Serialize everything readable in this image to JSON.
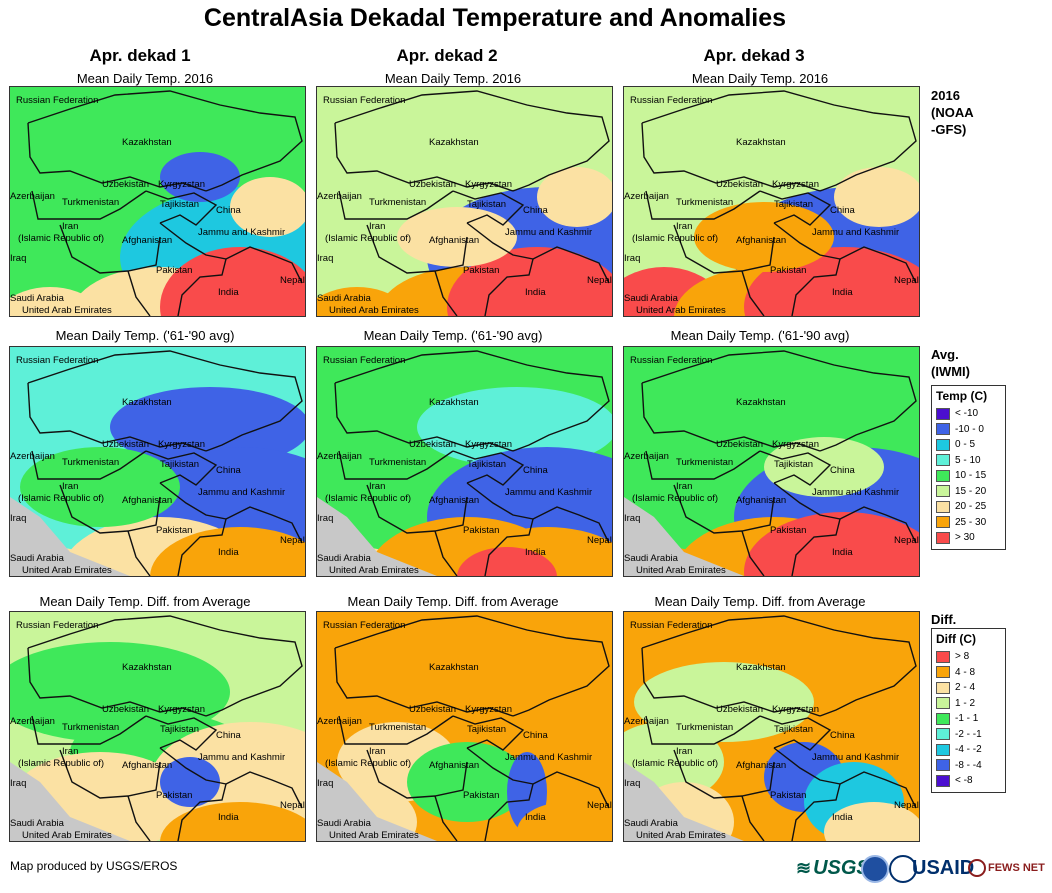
{
  "title": "CentralAsia Dekadal Temperature and Anomalies",
  "columns": [
    "Apr. dekad 1",
    "Apr. dekad 2",
    "Apr. dekad 3"
  ],
  "rows": [
    {
      "panel_title": "Mean Daily Temp. 2016",
      "side_label": [
        "2016",
        "(NOAA",
        "-GFS)"
      ]
    },
    {
      "panel_title": "Mean Daily Temp. ('61-'90 avg)",
      "side_label": [
        "Avg.",
        "(IWMI)"
      ]
    },
    {
      "panel_title": "Mean Daily Temp. Diff. from Average",
      "side_label": [
        "Diff."
      ]
    }
  ],
  "map_labels": [
    "Russian Federation",
    "Kazakhstan",
    "Uzbekistan",
    "Kyrgyzstan",
    "Azerbaijan",
    "Turkmenistan",
    "Tajikistan",
    "China",
    "Iran",
    "(Islamic Republic of)",
    "Afghanistan",
    "Jammu and Kashmir",
    "Iraq",
    "Pakistan",
    "Nepal",
    "India",
    "Saudi Arabia",
    "United Arab Emirates"
  ],
  "legend_temp": {
    "title": "Temp (C)",
    "items": [
      {
        "label": "< -10",
        "color": "#4b0fd0"
      },
      {
        "label": "-10 - 0",
        "color": "#3f63e6"
      },
      {
        "label": "0 - 5",
        "color": "#1ec8e0"
      },
      {
        "label": "5 - 10",
        "color": "#5ef0d8"
      },
      {
        "label": "10 - 15",
        "color": "#3fe85a"
      },
      {
        "label": "15 - 20",
        "color": "#c9f59a"
      },
      {
        "label": "20 - 25",
        "color": "#fbe1a3"
      },
      {
        "label": "25 - 30",
        "color": "#f9a40a"
      },
      {
        "label": "> 30",
        "color": "#f94b4b"
      }
    ]
  },
  "legend_diff": {
    "title": "Diff (C)",
    "items": [
      {
        "label": "> 8",
        "color": "#f94b4b"
      },
      {
        "label": "4 - 8",
        "color": "#f9a40a"
      },
      {
        "label": "2 - 4",
        "color": "#fbe1a3"
      },
      {
        "label": "1 - 2",
        "color": "#c9f59a"
      },
      {
        "label": "-1 - 1",
        "color": "#3fe85a"
      },
      {
        "label": "-2 - -1",
        "color": "#5ef0d8"
      },
      {
        "label": "-4 - -2",
        "color": "#1ec8e0"
      },
      {
        "label": "-8 - -4",
        "color": "#3f63e6"
      },
      {
        "label": "< -8",
        "color": "#4b0fd0"
      }
    ]
  },
  "credit": "Map produced by USGS/EROS",
  "logos": {
    "usgs": "USGS",
    "usaid": "USAID",
    "fewsnet": "FEWS NET"
  }
}
